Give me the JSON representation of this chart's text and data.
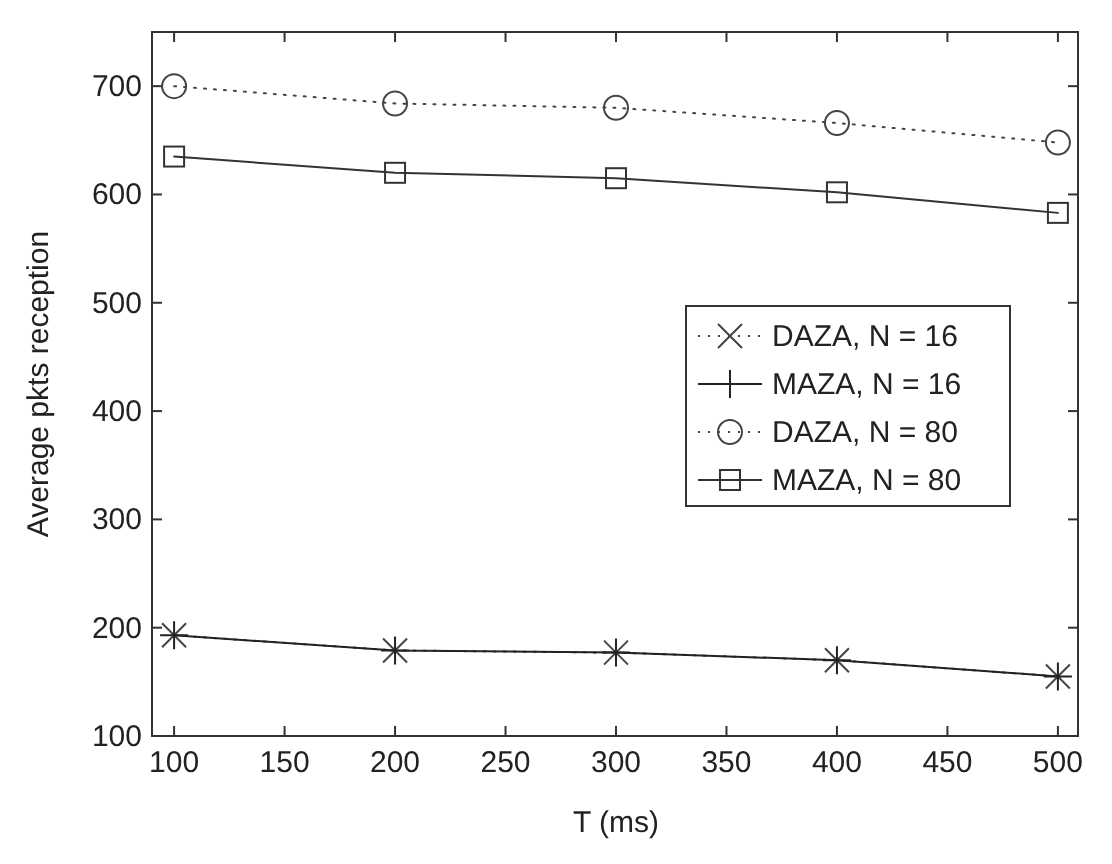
{
  "chart_data": {
    "type": "line",
    "xlabel": "T (ms)",
    "ylabel": "Average pkts reception",
    "x": [
      100,
      200,
      300,
      400,
      500
    ],
    "xlim": [
      90,
      510
    ],
    "xticks": [
      100,
      150,
      200,
      250,
      300,
      350,
      400,
      450,
      500
    ],
    "ylim": [
      100,
      750
    ],
    "yticks": [
      100,
      200,
      300,
      400,
      500,
      600,
      700
    ],
    "grid": false,
    "legend": "right",
    "series": [
      {
        "name": "DAZA, N = 16",
        "color": "#444444",
        "marker": "cross",
        "line_style": "dotted",
        "values": [
          193,
          179,
          177,
          170,
          155
        ]
      },
      {
        "name": "MAZA, N = 16",
        "color": "#222222",
        "marker": "plus",
        "line_style": "solid",
        "values": [
          193,
          179,
          177,
          170,
          155
        ]
      },
      {
        "name": "DAZA, N = 80",
        "color": "#444444",
        "marker": "circle",
        "line_style": "dotted",
        "values": [
          700,
          684,
          680,
          666,
          648
        ]
      },
      {
        "name": "MAZA, N = 80",
        "color": "#333333",
        "marker": "square",
        "line_style": "solid",
        "values": [
          635,
          620,
          615,
          602,
          583
        ]
      }
    ]
  }
}
